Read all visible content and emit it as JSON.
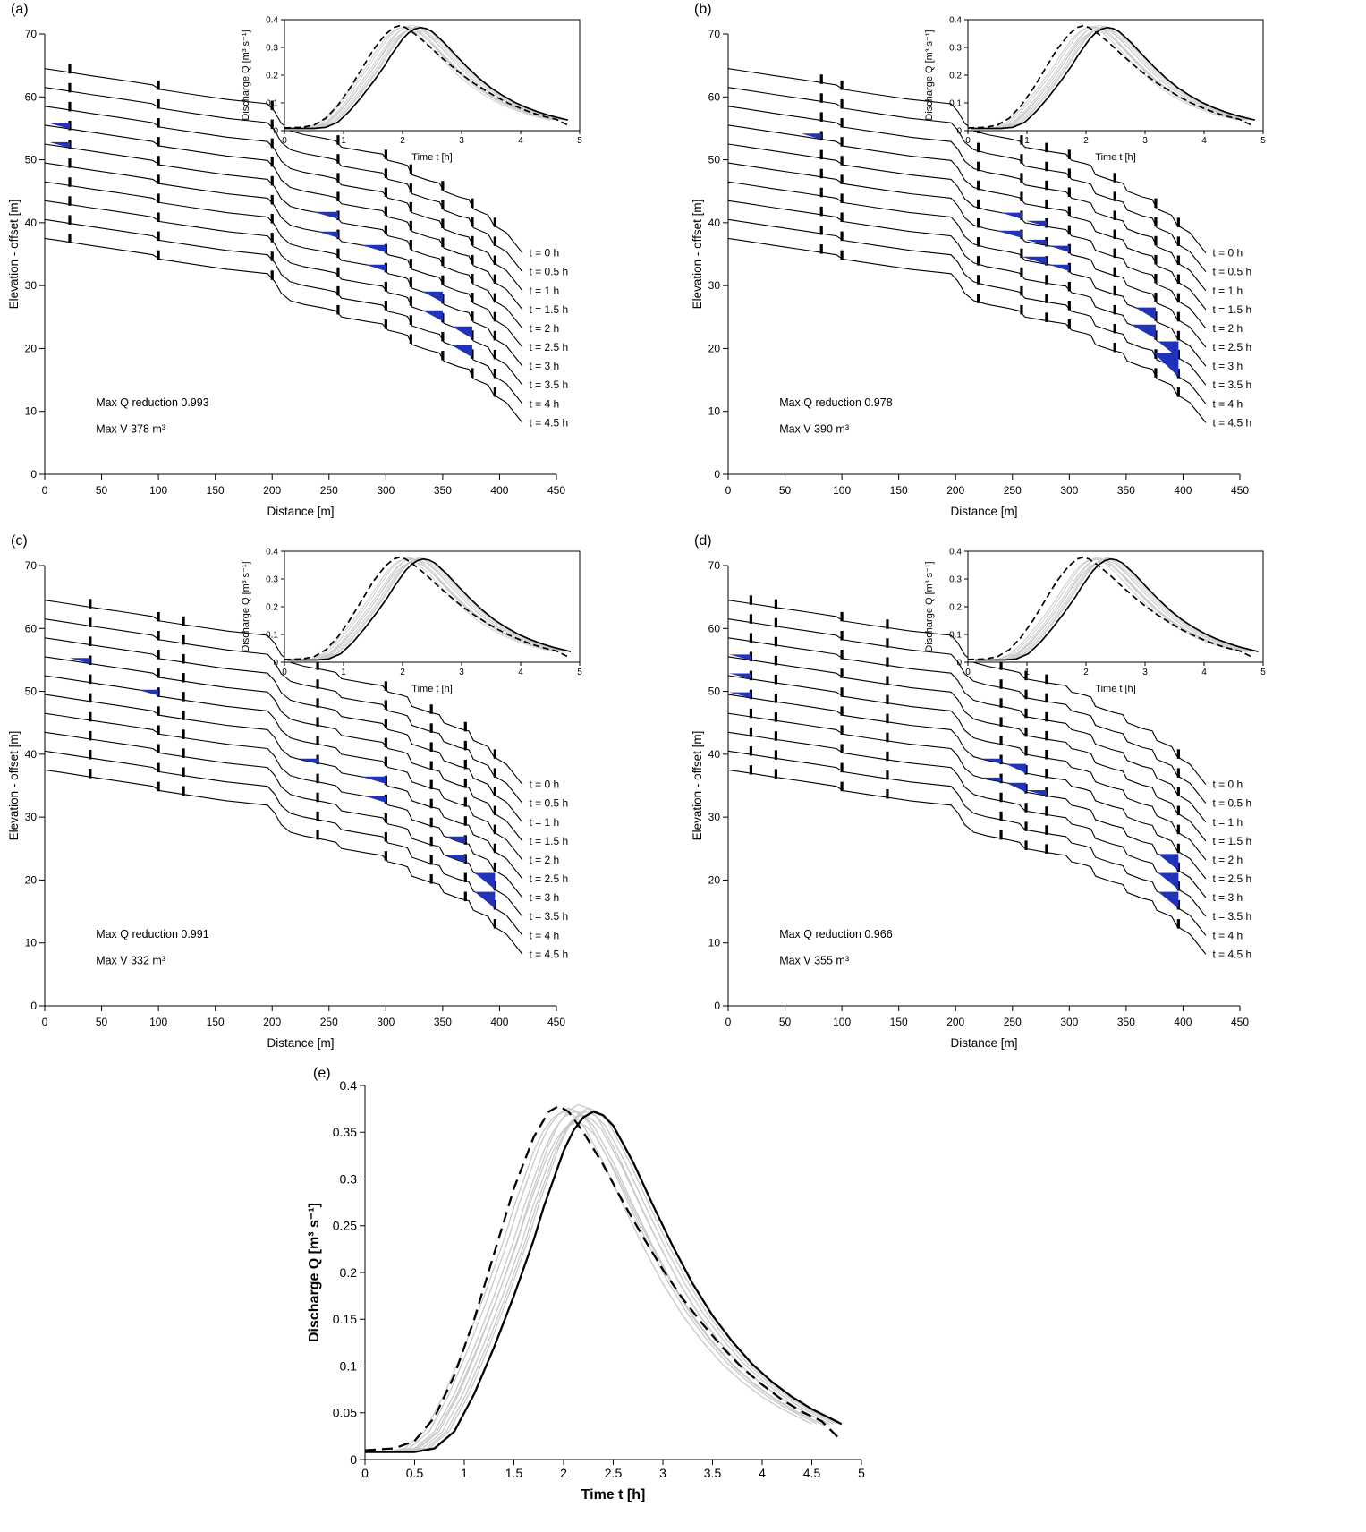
{
  "panel_e": {
    "label": "(e)"
  },
  "panels": [
    {
      "id": "a",
      "label": "(a)",
      "annotations": [
        "Max Q reduction 0.993",
        "Max V 378 m³"
      ],
      "dams": [
        22,
        100,
        200,
        258,
        300,
        322,
        350,
        376,
        396
      ],
      "pools": [
        {
          "i": 3,
          "x": 22
        },
        {
          "i": 4,
          "x": 22
        },
        {
          "i": 4,
          "x": 258,
          "w": 22
        },
        {
          "i": 5,
          "x": 258
        },
        {
          "i": 5,
          "x": 300,
          "w": 22
        },
        {
          "i": 6,
          "x": 300
        },
        {
          "i": 6,
          "x": 350
        },
        {
          "i": 7,
          "x": 350
        },
        {
          "i": 7,
          "x": 376
        },
        {
          "i": 8,
          "x": 376
        }
      ],
      "outflow_dt": 0
    },
    {
      "id": "b",
      "label": "(b)",
      "annotations": [
        "Max Q reduction 0.978",
        "Max V 390 m³"
      ],
      "dams": [
        82,
        100,
        220,
        258,
        280,
        300,
        340,
        376,
        396
      ],
      "pools": [
        {
          "i": 3,
          "x": 82
        },
        {
          "i": 4,
          "x": 258
        },
        {
          "i": 4,
          "x": 280
        },
        {
          "i": 5,
          "x": 258,
          "w": 22
        },
        {
          "i": 5,
          "x": 280
        },
        {
          "i": 5,
          "x": 300
        },
        {
          "i": 6,
          "x": 280,
          "w": 22
        },
        {
          "i": 6,
          "x": 300
        },
        {
          "i": 6,
          "x": 376
        },
        {
          "i": 7,
          "x": 376,
          "w": 22
        },
        {
          "i": 7,
          "x": 396
        },
        {
          "i": 8,
          "x": 396,
          "w": 22
        }
      ],
      "outflow_dt": 0.06
    },
    {
      "id": "c",
      "label": "(c)",
      "annotations": [
        "Max Q reduction 0.991",
        "Max V 332 m³"
      ],
      "dams": [
        40,
        100,
        122,
        240,
        300,
        340,
        370,
        396
      ],
      "pools": [
        {
          "i": 3,
          "x": 40
        },
        {
          "i": 4,
          "x": 100
        },
        {
          "i": 5,
          "x": 240
        },
        {
          "i": 5,
          "x": 300,
          "w": 22
        },
        {
          "i": 6,
          "x": 300
        },
        {
          "i": 6,
          "x": 370
        },
        {
          "i": 7,
          "x": 370
        },
        {
          "i": 7,
          "x": 396
        },
        {
          "i": 8,
          "x": 396
        }
      ],
      "outflow_dt": 0.05
    },
    {
      "id": "d",
      "label": "(d)",
      "annotations": [
        "Max Q reduction 0.966",
        "Max V 355 m³"
      ],
      "dams": [
        20,
        42,
        100,
        140,
        240,
        262,
        280,
        396
      ],
      "pools": [
        {
          "i": 3,
          "x": 20,
          "w": 24
        },
        {
          "i": 4,
          "x": 20,
          "w": 24
        },
        {
          "i": 5,
          "x": 20,
          "w": 24
        },
        {
          "i": 5,
          "x": 240
        },
        {
          "i": 5,
          "x": 262
        },
        {
          "i": 6,
          "x": 240
        },
        {
          "i": 6,
          "x": 262
        },
        {
          "i": 6,
          "x": 280
        },
        {
          "i": 6,
          "x": 396
        },
        {
          "i": 7,
          "x": 396
        },
        {
          "i": 8,
          "x": 396
        }
      ],
      "outflow_dt": 0.12
    }
  ],
  "chart_data": {
    "type": "line",
    "axes_main": {
      "xlabel": "Distance [m]",
      "ylabel": "Elevation - offset [m]",
      "xlim": [
        0,
        450
      ],
      "ylim": [
        0,
        70
      ],
      "xticks": [
        0,
        50,
        100,
        150,
        200,
        250,
        300,
        350,
        400,
        450
      ],
      "yticks": [
        0,
        10,
        20,
        30,
        40,
        50,
        60,
        70
      ]
    },
    "axes_inset": {
      "xlabel": "Time t [h]",
      "ylabel": "Discharge Q [m³ s⁻¹]",
      "xlim": [
        0,
        5
      ],
      "ylim": [
        0,
        0.4
      ],
      "xticks": [
        0,
        1,
        2,
        3,
        4,
        5
      ],
      "yticks": [
        0,
        0.1,
        0.2,
        0.3,
        0.4
      ]
    },
    "axes_e": {
      "xlabel": "Time t [h]",
      "ylabel": "Discharge Q [m³ s⁻¹]",
      "xlim": [
        0,
        5
      ],
      "ylim": [
        0,
        0.4
      ],
      "xticks": [
        0,
        0.5,
        1,
        1.5,
        2,
        2.5,
        3,
        3.5,
        4,
        4.5,
        5
      ],
      "yticks": [
        0,
        0.05,
        0.1,
        0.15,
        0.2,
        0.25,
        0.3,
        0.35,
        0.4
      ]
    },
    "terrain": {
      "n_profiles": 10,
      "offset_step": 3,
      "time_labels": [
        "t = 0 h",
        "t = 0.5 h",
        "t = 1 h",
        "t = 1.5 h",
        "t = 2 h",
        "t = 2.5 h",
        "t = 3 h",
        "t = 3.5 h",
        "t = 4 h",
        "t = 4.5 h"
      ],
      "label_x": 426,
      "profile": [
        [
          0,
          64.5
        ],
        [
          15,
          64.1
        ],
        [
          40,
          63.4
        ],
        [
          70,
          62.6
        ],
        [
          95,
          61.9
        ],
        [
          101,
          61.2
        ],
        [
          130,
          60.4
        ],
        [
          160,
          59.6
        ],
        [
          196,
          58.9
        ],
        [
          202,
          57.7
        ],
        [
          208,
          55.8
        ],
        [
          216,
          54.6
        ],
        [
          228,
          54.0
        ],
        [
          246,
          53.4
        ],
        [
          256,
          53.0
        ],
        [
          261,
          52.0
        ],
        [
          283,
          51.3
        ],
        [
          297,
          50.9
        ],
        [
          302,
          49.9
        ],
        [
          314,
          49.4
        ],
        [
          319,
          49.1
        ],
        [
          323,
          47.6
        ],
        [
          338,
          46.7
        ],
        [
          347,
          46.3
        ],
        [
          351,
          45.0
        ],
        [
          364,
          44.1
        ],
        [
          373,
          43.7
        ],
        [
          377,
          42.2
        ],
        [
          390,
          41.2
        ],
        [
          395,
          39.6
        ],
        [
          406,
          38.4
        ],
        [
          413,
          36.8
        ],
        [
          420,
          35.2
        ]
      ]
    },
    "hydrograph": {
      "inflow": [
        [
          0,
          0.01
        ],
        [
          0.3,
          0.012
        ],
        [
          0.5,
          0.02
        ],
        [
          0.7,
          0.045
        ],
        [
          0.9,
          0.09
        ],
        [
          1.1,
          0.15
        ],
        [
          1.3,
          0.22
        ],
        [
          1.5,
          0.29
        ],
        [
          1.7,
          0.345
        ],
        [
          1.85,
          0.372
        ],
        [
          1.95,
          0.378
        ],
        [
          2.05,
          0.372
        ],
        [
          2.2,
          0.35
        ],
        [
          2.4,
          0.315
        ],
        [
          2.6,
          0.275
        ],
        [
          2.8,
          0.238
        ],
        [
          3.0,
          0.203
        ],
        [
          3.2,
          0.172
        ],
        [
          3.4,
          0.145
        ],
        [
          3.6,
          0.12
        ],
        [
          3.8,
          0.098
        ],
        [
          4.0,
          0.08
        ],
        [
          4.2,
          0.064
        ],
        [
          4.4,
          0.051
        ],
        [
          4.6,
          0.041
        ],
        [
          4.8,
          0.02
        ]
      ],
      "outflow": [
        [
          0,
          0.008
        ],
        [
          0.5,
          0.008
        ],
        [
          0.7,
          0.012
        ],
        [
          0.9,
          0.03
        ],
        [
          1.1,
          0.07
        ],
        [
          1.3,
          0.12
        ],
        [
          1.5,
          0.175
        ],
        [
          1.7,
          0.235
        ],
        [
          1.8,
          0.27
        ],
        [
          1.9,
          0.3
        ],
        [
          2.0,
          0.33
        ],
        [
          2.1,
          0.352
        ],
        [
          2.2,
          0.366
        ],
        [
          2.3,
          0.372
        ],
        [
          2.4,
          0.368
        ],
        [
          2.5,
          0.357
        ],
        [
          2.7,
          0.318
        ],
        [
          2.9,
          0.272
        ],
        [
          3.1,
          0.228
        ],
        [
          3.3,
          0.188
        ],
        [
          3.5,
          0.154
        ],
        [
          3.7,
          0.126
        ],
        [
          3.9,
          0.102
        ],
        [
          4.1,
          0.083
        ],
        [
          4.3,
          0.067
        ],
        [
          4.5,
          0.054
        ],
        [
          4.8,
          0.038
        ]
      ],
      "ensemble": [
        {
          "dt": -0.3,
          "s": 1.0
        },
        {
          "dt": -0.25,
          "s": 1.01
        },
        {
          "dt": -0.2,
          "s": 1.0
        },
        {
          "dt": -0.15,
          "s": 1.02
        },
        {
          "dt": -0.12,
          "s": 0.99
        },
        {
          "dt": -0.08,
          "s": 1.0
        },
        {
          "dt": -0.05,
          "s": 1.01
        },
        {
          "dt": -0.18,
          "s": 0.97
        }
      ]
    },
    "colors": {
      "line": "#000000",
      "ensemble": "#c8c8c8",
      "pool": "#2233bb"
    }
  }
}
